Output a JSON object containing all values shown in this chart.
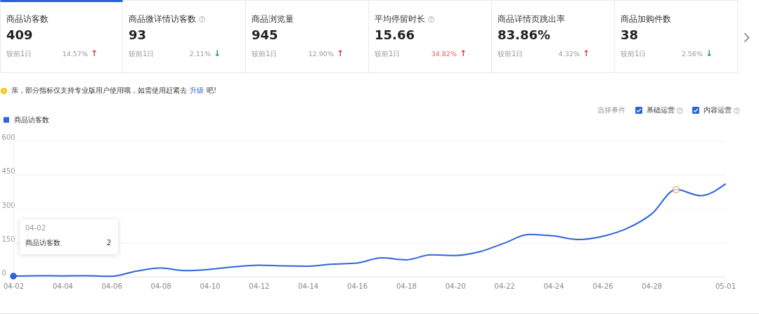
{
  "chart_data": [
    {
      "type": "other",
      "title": "商品访客数",
      "annotations": [
        "409",
        "较前1日",
        "14.57%",
        "↑"
      ],
      "colors": [
        "#999999",
        "#e5383b"
      ]
    },
    {
      "type": "other",
      "title": "商品微详情访客数",
      "annotations": [
        "93",
        "较前1日",
        "2.11%",
        "↓"
      ],
      "colors": [
        "#999999",
        "#12a04b"
      ]
    },
    {
      "type": "other",
      "title": "商品浏览量",
      "annotations": [
        "945",
        "较前1日",
        "12.90%",
        "↑"
      ],
      "colors": [
        "#999999",
        "#e5383b"
      ]
    },
    {
      "type": "other",
      "title": "平均停留时长",
      "annotations": [
        "15.66",
        "较前1日",
        "34.82%",
        "↑"
      ],
      "colors": [
        "#e8605e",
        "#e5383b"
      ]
    },
    {
      "type": "other",
      "title": "商品详情页跳出率",
      "annotations": [
        "83.86%",
        "较前1日",
        "4.32%",
        "↑"
      ],
      "colors": [
        "#999999",
        "#e5383b"
      ]
    },
    {
      "type": "other",
      "title": "商品加购件数",
      "annotations": [
        "38",
        "较前1日",
        "2.56%",
        "↓"
      ],
      "colors": [
        "#999999",
        "#12a04b"
      ]
    },
    {
      "type": "line",
      "annotations": [
        "亲，部分指标仅支持专业版用户使用哦，如需使用赶紧去",
        "升级",
        "吧!",
        "选择事件",
        "基础运营",
        "内容运营",
        "04-02",
        "商品访客数",
        "2"
      ],
      "x": [
        "--04-02",
        "--04-03",
        "--04-04",
        "--04-05",
        "--04-06",
        "--04-07",
        "--04-08",
        "--04-09",
        "--04-10",
        "--04-11",
        "--04-12",
        "--04-13",
        "--04-14",
        "--04-15",
        "--04-16",
        "--04-17",
        "--04-18",
        "--04-19",
        "--04-20",
        "--04-21",
        "--04-22",
        "--04-23",
        "--04-24",
        "--04-25",
        "--04-26",
        "--04-27",
        "--04-28",
        "--04-29",
        "--04-30",
        "--05-01"
      ],
      "series": [
        {
          "name": "商品访客数",
          "color": "#2e64dc",
          "values": [
            2,
            4,
            3,
            4,
            1,
            24,
            38,
            26,
            32,
            43,
            50,
            47,
            46,
            55,
            60,
            83,
            74,
            96,
            93,
            110,
            148,
            186,
            180,
            164,
            178,
            213,
            277,
            385,
            358,
            409
          ]
        },
        {
          "type": "scatter",
          "color": "#f19a52",
          "x": [
            "--04-29"
          ],
          "values": [
            385
          ]
        },
        {
          "type": "scatter",
          "color": "#2e64dc",
          "x": [
            "--04-02"
          ],
          "values": [
            2
          ]
        }
      ],
      "xlim": [
        "--04-02",
        "--05-01"
      ],
      "xticks": [
        {
          "value": "--04-02",
          "label": "04-02"
        },
        {
          "value": "--04-04",
          "label": "04-04"
        },
        {
          "value": "--04-06",
          "label": "04-06"
        },
        {
          "value": "--04-08",
          "label": "04-08"
        },
        {
          "value": "--04-10",
          "label": "04-10"
        },
        {
          "value": "--04-12",
          "label": "04-12"
        },
        {
          "value": "--04-14",
          "label": "04-14"
        },
        {
          "value": "--04-16",
          "label": "04-16"
        },
        {
          "value": "--04-18",
          "label": "04-18"
        },
        {
          "value": "--04-20",
          "label": "04-20"
        },
        {
          "value": "--04-22",
          "label": "04-22"
        },
        {
          "value": "--04-24",
          "label": "04-24"
        },
        {
          "value": "--04-26",
          "label": "04-26"
        },
        {
          "value": "--04-28",
          "label": "04-28"
        },
        {
          "value": "--05-01",
          "label": "05-01"
        }
      ],
      "ylim": [
        0,
        600
      ],
      "yticks": [
        0,
        150,
        300,
        450,
        600
      ],
      "grid": "y",
      "legend": "top left"
    }
  ]
}
